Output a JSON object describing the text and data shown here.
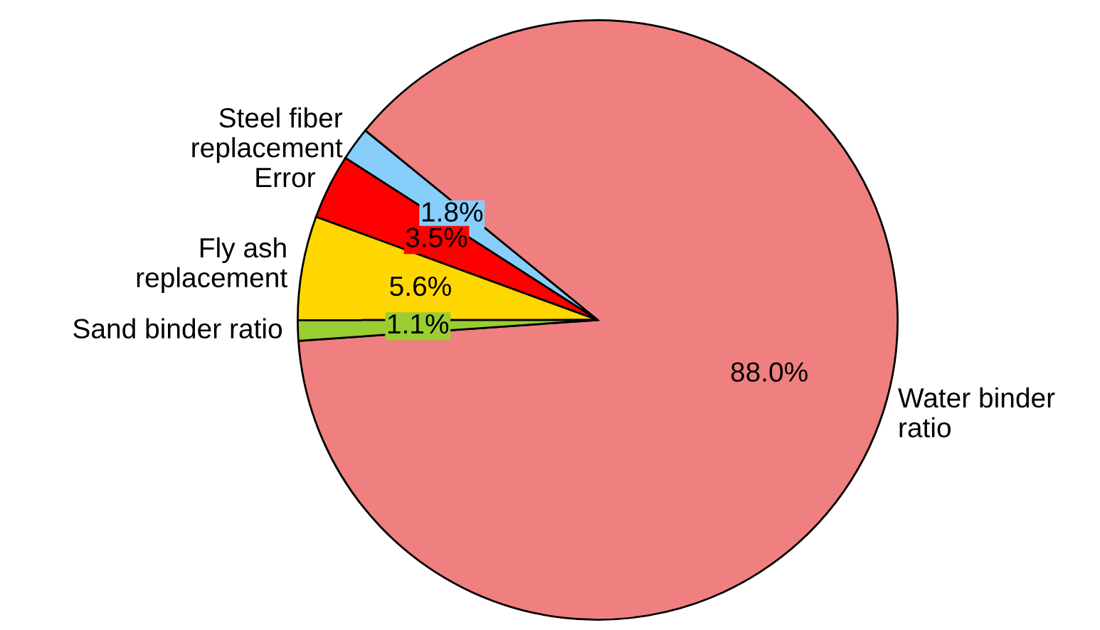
{
  "chart_data": {
    "type": "pie",
    "categories": [
      "Water binder\nratio",
      "Steel fiber\nreplacement",
      "Error",
      "Fly ash\nreplacement",
      "Sand binder ratio"
    ],
    "values": [
      88.0,
      1.8,
      3.5,
      5.6,
      1.1
    ],
    "colors": [
      "#f08080",
      "#87cefa",
      "#ff0000",
      "#ffd700",
      "#9acd32"
    ],
    "value_labels": [
      "88.0%",
      "1.8%",
      "3.5%",
      "5.6%",
      "1.1%"
    ]
  }
}
